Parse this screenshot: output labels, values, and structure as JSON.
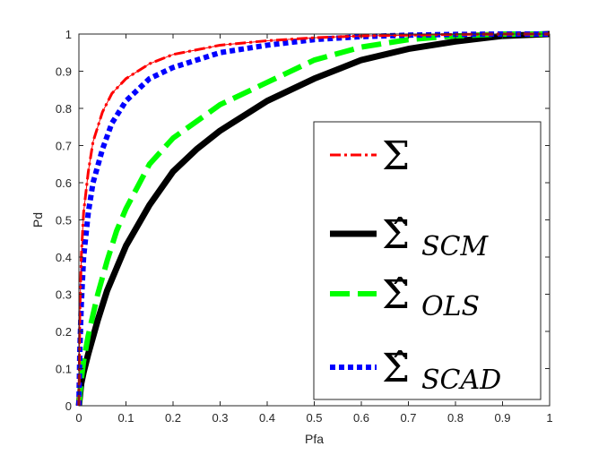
{
  "chart_data": {
    "type": "line",
    "title": "",
    "xlabel": "Pfa",
    "ylabel": "Pd",
    "xlim": [
      0,
      1
    ],
    "ylim": [
      0,
      1
    ],
    "xticks": [
      "0",
      "0.1",
      "0.2",
      "0.3",
      "0.4",
      "0.5",
      "0.6",
      "0.7",
      "0.8",
      "0.9",
      "1"
    ],
    "yticks": [
      "0",
      "0.1",
      "0.2",
      "0.3",
      "0.4",
      "0.5",
      "0.6",
      "0.7",
      "0.8",
      "0.9",
      "1"
    ],
    "grid": false,
    "legend_position": "right",
    "series": [
      {
        "name": "Σ",
        "legend_symbol": "Σ",
        "legend_subscript": "",
        "color": "#ff0000",
        "style": "dash-dot",
        "x": [
          0,
          0.002,
          0.005,
          0.01,
          0.02,
          0.03,
          0.05,
          0.07,
          0.1,
          0.15,
          0.2,
          0.3,
          0.4,
          0.5,
          0.6,
          0.7,
          0.8,
          0.9,
          1.0
        ],
        "y": [
          0,
          0.25,
          0.4,
          0.52,
          0.63,
          0.71,
          0.79,
          0.84,
          0.88,
          0.92,
          0.945,
          0.97,
          0.982,
          0.99,
          0.995,
          0.997,
          0.999,
          1.0,
          1.0
        ]
      },
      {
        "name": "Σ̂ SCM",
        "legend_symbol": "Σ̂",
        "legend_subscript": "SCM",
        "color": "#000000",
        "style": "solid",
        "x": [
          0,
          0.005,
          0.01,
          0.02,
          0.04,
          0.06,
          0.08,
          0.1,
          0.15,
          0.2,
          0.25,
          0.3,
          0.35,
          0.4,
          0.5,
          0.6,
          0.7,
          0.8,
          0.9,
          1.0
        ],
        "y": [
          0,
          0.06,
          0.09,
          0.14,
          0.23,
          0.31,
          0.37,
          0.43,
          0.54,
          0.63,
          0.69,
          0.74,
          0.78,
          0.82,
          0.88,
          0.93,
          0.96,
          0.98,
          0.995,
          1.0
        ]
      },
      {
        "name": "Σ̂ OLS",
        "legend_symbol": "Σ̂",
        "legend_subscript": "OLS",
        "color": "#00ff00",
        "style": "dashed",
        "x": [
          0,
          0.005,
          0.01,
          0.02,
          0.04,
          0.06,
          0.08,
          0.1,
          0.15,
          0.2,
          0.3,
          0.4,
          0.5,
          0.6,
          0.7,
          0.8,
          0.9,
          1.0
        ],
        "y": [
          0,
          0.07,
          0.12,
          0.19,
          0.3,
          0.39,
          0.47,
          0.53,
          0.65,
          0.72,
          0.81,
          0.87,
          0.93,
          0.965,
          0.985,
          0.995,
          1.0,
          1.0
        ]
      },
      {
        "name": "Σ̂ SCAD",
        "legend_symbol": "Σ̂",
        "legend_subscript": "SCAD",
        "color": "#0000ff",
        "style": "dotted",
        "x": [
          0,
          0.002,
          0.005,
          0.01,
          0.02,
          0.03,
          0.05,
          0.07,
          0.1,
          0.15,
          0.2,
          0.3,
          0.4,
          0.5,
          0.6,
          0.7,
          0.8,
          0.9,
          1.0
        ],
        "y": [
          0,
          0.15,
          0.27,
          0.4,
          0.52,
          0.6,
          0.69,
          0.76,
          0.82,
          0.88,
          0.91,
          0.95,
          0.97,
          0.985,
          0.993,
          0.997,
          0.999,
          1.0,
          1.0
        ]
      }
    ]
  }
}
